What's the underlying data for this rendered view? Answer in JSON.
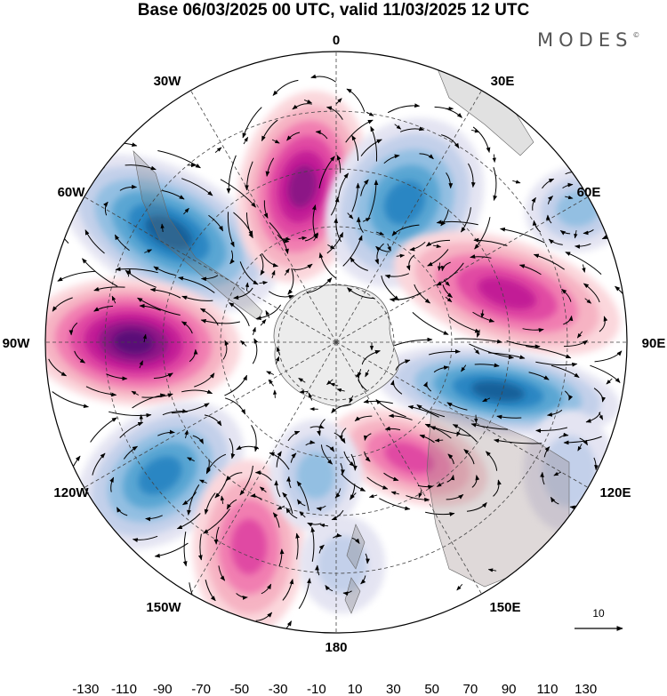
{
  "title": "Base 06/03/2025 00 UTC, valid 11/03/2025 12 UTC",
  "brand": "MODES",
  "brand_mark": "©",
  "longitudes": {
    "top": "0",
    "top_right": "30E",
    "right_upper": "60E",
    "right": "90E",
    "right_lower": "120E",
    "bottom_right": "150E",
    "bottom": "180",
    "bottom_left": "150W",
    "left_lower": "120W",
    "left": "90W",
    "left_upper": "60W",
    "top_left": "30W"
  },
  "reference_vector": {
    "label": "10",
    "color": "#000000"
  },
  "colorbar": {
    "colors": [
      "#0d3a5c",
      "#13609a",
      "#2a86c3",
      "#5aa6d3",
      "#93bfe2",
      "#c3d0ea",
      "#e4e4f2",
      "#ffffff",
      "#fbd7dc",
      "#f6b3c3",
      "#f17eb1",
      "#e04aa3",
      "#c21d96",
      "#8c1486",
      "#5a0c78"
    ],
    "ticks": [
      "-130",
      "-110",
      "-90",
      "-70",
      "-50",
      "-30",
      "-10",
      "10",
      "30",
      "50",
      "70",
      "90",
      "110",
      "130"
    ]
  },
  "colors": {
    "antarctica": "#ececec",
    "grid": "#444444",
    "contour": "#000000"
  }
}
